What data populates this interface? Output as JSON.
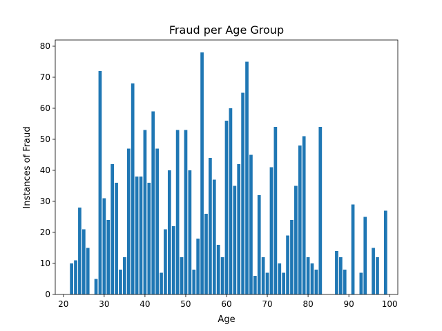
{
  "chart_data": {
    "type": "bar",
    "title": "Fraud per Age Group",
    "xlabel": "Age",
    "ylabel": "Instances of Fraud",
    "xlim": [
      18,
      102
    ],
    "ylim": [
      0,
      82
    ],
    "xticks": [
      20,
      30,
      40,
      50,
      60,
      70,
      80,
      90,
      100
    ],
    "yticks": [
      0,
      10,
      20,
      30,
      40,
      50,
      60,
      70,
      80
    ],
    "bar_color": "#1f77b4",
    "grid": false,
    "x": [
      22,
      23,
      24,
      25,
      26,
      28,
      29,
      30,
      31,
      32,
      33,
      34,
      35,
      36,
      37,
      38,
      39,
      40,
      41,
      42,
      43,
      44,
      45,
      46,
      47,
      48,
      49,
      50,
      51,
      52,
      53,
      54,
      55,
      56,
      57,
      58,
      59,
      60,
      61,
      62,
      63,
      64,
      65,
      66,
      67,
      68,
      69,
      70,
      71,
      72,
      73,
      74,
      75,
      76,
      77,
      78,
      79,
      80,
      81,
      82,
      83,
      87,
      88,
      89,
      91,
      93,
      94,
      96,
      97,
      99
    ],
    "values": [
      10,
      11,
      28,
      21,
      15,
      5,
      72,
      31,
      24,
      42,
      36,
      8,
      12,
      47,
      68,
      38,
      38,
      53,
      36,
      59,
      47,
      7,
      21,
      40,
      22,
      53,
      12,
      53,
      40,
      8,
      18,
      78,
      26,
      44,
      37,
      16,
      12,
      56,
      60,
      35,
      42,
      65,
      75,
      45,
      6,
      32,
      12,
      7,
      41,
      54,
      10,
      7,
      19,
      24,
      35,
      48,
      51,
      12,
      10,
      8,
      54,
      14,
      12,
      8,
      29,
      7,
      25,
      15,
      12,
      27
    ]
  }
}
